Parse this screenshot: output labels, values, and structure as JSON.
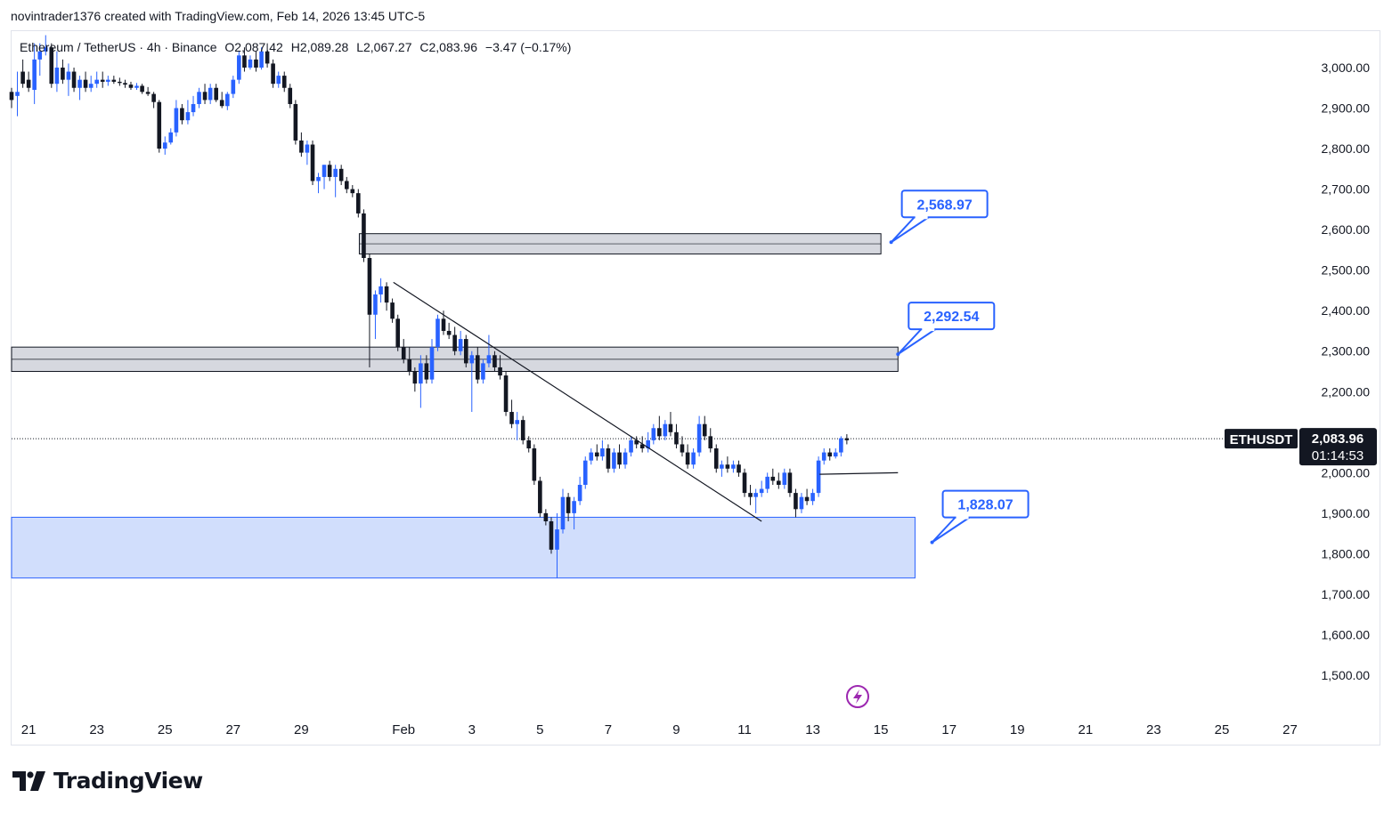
{
  "header": {
    "credit": "novintrader1376 created with TradingView.com, Feb 14, 2026 13:45 UTC-5"
  },
  "legend": {
    "symbol": "Ethereum / TetherUS · 4h · Binance",
    "open": "O2,087.42",
    "high": "H2,089.28",
    "low": "L2,067.27",
    "close": "C2,083.96",
    "change": "−3.47 (−0.17%)"
  },
  "price_tag": {
    "ticker": "ETHUSDT",
    "price": "2,083.96",
    "countdown": "01:14:53"
  },
  "brand": {
    "name": "TradingView"
  },
  "colors": {
    "up": "#2962ff",
    "down": "#131722",
    "zone_fill": "#d1d4dc",
    "demand_fill": "#cfdcfc",
    "accent": "#2962ff"
  },
  "chart_data": {
    "type": "candlestick",
    "timeframe": "4h",
    "y_ticks": [
      "3,000.00",
      "2,900.00",
      "2,800.00",
      "2,700.00",
      "2,600.00",
      "2,500.00",
      "2,400.00",
      "2,300.00",
      "2,200.00",
      "2,100.00",
      "2,000.00",
      "1,900.00",
      "1,800.00",
      "1,700.00",
      "1,600.00",
      "1,500.00"
    ],
    "y_tick_values": [
      3000,
      2900,
      2800,
      2700,
      2600,
      2500,
      2400,
      2300,
      2200,
      2100,
      2000,
      1900,
      1800,
      1700,
      1600,
      1500
    ],
    "ylim": [
      1410,
      3090
    ],
    "x_ticks": [
      "21",
      "23",
      "25",
      "27",
      "29",
      "Feb",
      "3",
      "5",
      "7",
      "9",
      "11",
      "13",
      "15",
      "17",
      "19",
      "21",
      "23",
      "25",
      "27"
    ],
    "x_tick_days": [
      -11,
      -9,
      -7,
      -5,
      -3,
      0,
      2,
      4,
      6,
      8,
      10,
      12,
      14,
      16,
      18,
      20,
      22,
      24,
      26
    ],
    "xlim_days": [
      -11.5,
      26.3
    ],
    "last_price": 2083.96,
    "zones": [
      {
        "from_day": -1.3,
        "to_day": 14.0,
        "low": 2540,
        "high": 2590
      },
      {
        "from_day": -11.5,
        "to_day": 14.5,
        "low": 2250,
        "high": 2310
      },
      {
        "from_day": -11.5,
        "to_day": 15.0,
        "low": 1740,
        "high": 1890
      }
    ],
    "callouts": [
      {
        "label": "2,568.97",
        "day": 14.3,
        "value": 2568.97
      },
      {
        "label": "2,292.54",
        "day": 14.5,
        "value": 2292.54
      },
      {
        "label": "1,828.07",
        "day": 15.5,
        "value": 1828.07
      }
    ],
    "trendlines": [
      {
        "d1": -0.3,
        "v1": 2470,
        "d2": 10.5,
        "v2": 1880
      },
      {
        "d1": 12.2,
        "v1": 1996,
        "d2": 14.5,
        "v2": 2000
      }
    ],
    "candles": [
      [
        -11.5,
        2940,
        2950,
        2920,
        2900
      ],
      [
        -11.33,
        2930,
        2990,
        2940,
        2880
      ],
      [
        -11.17,
        2990,
        3020,
        2960,
        2950
      ],
      [
        -11.0,
        2970,
        2990,
        2950,
        2940
      ],
      [
        -10.83,
        2945,
        3060,
        3020,
        2910
      ],
      [
        -10.67,
        3020,
        3060,
        3040,
        2980
      ],
      [
        -10.5,
        3040,
        3080,
        3050,
        3030
      ],
      [
        -10.33,
        3050,
        3060,
        2960,
        2950
      ],
      [
        -10.17,
        2960,
        3040,
        3000,
        2940
      ],
      [
        -10.0,
        3000,
        3020,
        2970,
        2960
      ],
      [
        -9.83,
        2970,
        3010,
        2990,
        2930
      ],
      [
        -9.67,
        2990,
        3000,
        2950,
        2940
      ],
      [
        -9.5,
        2950,
        2980,
        2970,
        2920
      ],
      [
        -9.33,
        2970,
        2990,
        2950,
        2940
      ],
      [
        -9.17,
        2950,
        2980,
        2960,
        2940
      ],
      [
        -9.0,
        2960,
        2990,
        2970,
        2950
      ],
      [
        -8.83,
        2970,
        2990,
        2965,
        2950
      ],
      [
        -8.67,
        2965,
        2980,
        2970,
        2955
      ],
      [
        -8.5,
        2970,
        2980,
        2965,
        2960
      ],
      [
        -8.33,
        2965,
        2975,
        2962,
        2955
      ],
      [
        -8.17,
        2962,
        2970,
        2958,
        2950
      ],
      [
        -8.0,
        2958,
        2965,
        2950,
        2945
      ],
      [
        -7.83,
        2950,
        2962,
        2955,
        2945
      ],
      [
        -7.67,
        2955,
        2960,
        2940,
        2935
      ],
      [
        -7.5,
        2940,
        2952,
        2935,
        2930
      ],
      [
        -7.33,
        2935,
        2940,
        2915,
        2900
      ],
      [
        -7.17,
        2915,
        2920,
        2800,
        2790
      ],
      [
        -7.0,
        2800,
        2830,
        2815,
        2785
      ],
      [
        -6.83,
        2815,
        2850,
        2840,
        2810
      ],
      [
        -6.67,
        2840,
        2920,
        2900,
        2830
      ],
      [
        -6.5,
        2900,
        2910,
        2870,
        2860
      ],
      [
        -6.33,
        2870,
        2920,
        2890,
        2860
      ],
      [
        -6.17,
        2890,
        2930,
        2910,
        2880
      ],
      [
        -6.0,
        2910,
        2950,
        2940,
        2900
      ],
      [
        -5.83,
        2940,
        2960,
        2920,
        2910
      ],
      [
        -5.67,
        2920,
        2960,
        2950,
        2910
      ],
      [
        -5.5,
        2950,
        2960,
        2920,
        2915
      ],
      [
        -5.33,
        2920,
        2940,
        2905,
        2900
      ],
      [
        -5.17,
        2905,
        2940,
        2935,
        2895
      ],
      [
        -5.0,
        2935,
        2980,
        2970,
        2925
      ],
      [
        -4.83,
        2970,
        3040,
        3030,
        2960
      ],
      [
        -4.67,
        3030,
        3050,
        3000,
        2990
      ],
      [
        -4.5,
        3000,
        3030,
        3020,
        2995
      ],
      [
        -4.33,
        3020,
        3040,
        3000,
        2990
      ],
      [
        -4.17,
        3000,
        3050,
        3040,
        2995
      ],
      [
        -4.0,
        3040,
        3060,
        3010,
        3000
      ],
      [
        -3.83,
        3010,
        3020,
        2960,
        2950
      ],
      [
        -3.67,
        2960,
        2990,
        2980,
        2950
      ],
      [
        -3.5,
        2980,
        2990,
        2950,
        2940
      ],
      [
        -3.33,
        2950,
        2960,
        2910,
        2900
      ],
      [
        -3.17,
        2910,
        2920,
        2820,
        2810
      ],
      [
        -3.0,
        2820,
        2840,
        2790,
        2780
      ],
      [
        -2.83,
        2790,
        2820,
        2810,
        2760
      ],
      [
        -2.67,
        2810,
        2820,
        2720,
        2710
      ],
      [
        -2.5,
        2720,
        2740,
        2730,
        2690
      ],
      [
        -2.33,
        2730,
        2760,
        2760,
        2700
      ],
      [
        -2.17,
        2760,
        2770,
        2730,
        2720
      ],
      [
        -2.0,
        2730,
        2760,
        2750,
        2680
      ],
      [
        -1.83,
        2750,
        2760,
        2720,
        2710
      ],
      [
        -1.67,
        2720,
        2730,
        2700,
        2690
      ],
      [
        -1.5,
        2700,
        2710,
        2690,
        2680
      ],
      [
        -1.33,
        2690,
        2700,
        2640,
        2630
      ],
      [
        -1.17,
        2640,
        2650,
        2530,
        2520
      ],
      [
        -1.0,
        2530,
        2540,
        2390,
        2260
      ],
      [
        -0.83,
        2390,
        2450,
        2440,
        2330
      ],
      [
        -0.67,
        2440,
        2480,
        2460,
        2420
      ],
      [
        -0.5,
        2460,
        2470,
        2420,
        2400
      ],
      [
        -0.33,
        2420,
        2430,
        2380,
        2370
      ],
      [
        -0.17,
        2380,
        2390,
        2310,
        2300
      ],
      [
        0.0,
        2310,
        2330,
        2280,
        2270
      ],
      [
        0.17,
        2280,
        2310,
        2250,
        2240
      ],
      [
        0.33,
        2250,
        2260,
        2220,
        2200
      ],
      [
        0.5,
        2220,
        2290,
        2270,
        2160
      ],
      [
        0.67,
        2270,
        2290,
        2230,
        2220
      ],
      [
        0.83,
        2230,
        2330,
        2310,
        2220
      ],
      [
        1.0,
        2310,
        2390,
        2380,
        2300
      ],
      [
        1.17,
        2380,
        2400,
        2350,
        2340
      ],
      [
        1.33,
        2350,
        2370,
        2340,
        2330
      ],
      [
        1.5,
        2340,
        2360,
        2300,
        2290
      ],
      [
        1.67,
        2300,
        2350,
        2330,
        2290
      ],
      [
        1.83,
        2330,
        2340,
        2270,
        2260
      ],
      [
        2.0,
        2270,
        2300,
        2290,
        2150
      ],
      [
        2.17,
        2290,
        2310,
        2230,
        2220
      ],
      [
        2.33,
        2230,
        2280,
        2270,
        2220
      ],
      [
        2.5,
        2270,
        2340,
        2290,
        2260
      ],
      [
        2.67,
        2290,
        2300,
        2260,
        2250
      ],
      [
        2.83,
        2260,
        2290,
        2240,
        2230
      ],
      [
        3.0,
        2240,
        2250,
        2150,
        2140
      ],
      [
        3.17,
        2150,
        2180,
        2120,
        2110
      ],
      [
        3.33,
        2120,
        2150,
        2130,
        2080
      ],
      [
        3.5,
        2130,
        2140,
        2080,
        2070
      ],
      [
        3.67,
        2080,
        2090,
        2060,
        2050
      ],
      [
        3.83,
        2060,
        2070,
        1980,
        1970
      ],
      [
        4.0,
        1980,
        1990,
        1900,
        1890
      ],
      [
        4.17,
        1900,
        1910,
        1880,
        1870
      ],
      [
        4.33,
        1880,
        1890,
        1810,
        1800
      ],
      [
        4.5,
        1810,
        1900,
        1860,
        1740
      ],
      [
        4.67,
        1860,
        1960,
        1940,
        1850
      ],
      [
        4.83,
        1940,
        1950,
        1900,
        1880
      ],
      [
        5.0,
        1900,
        1940,
        1930,
        1860
      ],
      [
        5.17,
        1930,
        1990,
        1970,
        1920
      ],
      [
        5.33,
        1970,
        2040,
        2030,
        1960
      ],
      [
        5.5,
        2030,
        2060,
        2050,
        2020
      ],
      [
        5.67,
        2050,
        2070,
        2040,
        2030
      ],
      [
        5.83,
        2040,
        2080,
        2060,
        2030
      ],
      [
        6.0,
        2060,
        2070,
        2010,
        2000
      ],
      [
        6.17,
        2010,
        2060,
        2050,
        2000
      ],
      [
        6.33,
        2050,
        2070,
        2020,
        2010
      ],
      [
        6.5,
        2020,
        2060,
        2050,
        2010
      ],
      [
        6.67,
        2050,
        2090,
        2080,
        2040
      ],
      [
        6.83,
        2080,
        2090,
        2070,
        2060
      ],
      [
        7.0,
        2070,
        2090,
        2060,
        2050
      ],
      [
        7.17,
        2060,
        2100,
        2080,
        2050
      ],
      [
        7.33,
        2080,
        2120,
        2110,
        2070
      ],
      [
        7.5,
        2110,
        2140,
        2090,
        2080
      ],
      [
        7.67,
        2090,
        2130,
        2120,
        2080
      ],
      [
        7.83,
        2120,
        2150,
        2100,
        2090
      ],
      [
        8.0,
        2100,
        2120,
        2070,
        2060
      ],
      [
        8.17,
        2070,
        2090,
        2050,
        2040
      ],
      [
        8.33,
        2050,
        2070,
        2020,
        2010
      ],
      [
        8.5,
        2020,
        2060,
        2050,
        2010
      ],
      [
        8.67,
        2050,
        2140,
        2120,
        2040
      ],
      [
        8.83,
        2120,
        2140,
        2090,
        2080
      ],
      [
        9.0,
        2090,
        2110,
        2060,
        2050
      ],
      [
        9.17,
        2060,
        2070,
        2010,
        2000
      ],
      [
        9.33,
        2010,
        2030,
        2020,
        1990
      ],
      [
        9.5,
        2020,
        2040,
        2010,
        2000
      ],
      [
        9.67,
        2010,
        2030,
        2020,
        2000
      ],
      [
        9.83,
        2020,
        2030,
        2000,
        1990
      ],
      [
        10.0,
        2000,
        2010,
        1950,
        1940
      ],
      [
        10.17,
        1950,
        1970,
        1940,
        1920
      ],
      [
        10.33,
        1940,
        1960,
        1950,
        1900
      ],
      [
        10.5,
        1950,
        1980,
        1960,
        1940
      ],
      [
        10.67,
        1960,
        2000,
        1990,
        1950
      ],
      [
        10.83,
        1990,
        2010,
        1980,
        1970
      ],
      [
        11.0,
        1980,
        2000,
        1970,
        1960
      ],
      [
        11.17,
        1970,
        2010,
        2000,
        1960
      ],
      [
        11.33,
        2000,
        2010,
        1950,
        1940
      ],
      [
        11.5,
        1950,
        1960,
        1910,
        1890
      ],
      [
        11.67,
        1910,
        1950,
        1940,
        1900
      ],
      [
        11.83,
        1940,
        1960,
        1930,
        1920
      ],
      [
        12.0,
        1930,
        1960,
        1950,
        1920
      ],
      [
        12.17,
        1950,
        2040,
        2030,
        1940
      ],
      [
        12.33,
        2030,
        2060,
        2050,
        2020
      ],
      [
        12.5,
        2050,
        2060,
        2040,
        2030
      ],
      [
        12.67,
        2040,
        2060,
        2050,
        2035
      ],
      [
        12.83,
        2050,
        2090,
        2085,
        2040
      ],
      [
        13.0,
        2085,
        2095,
        2080,
        2070
      ]
    ]
  }
}
